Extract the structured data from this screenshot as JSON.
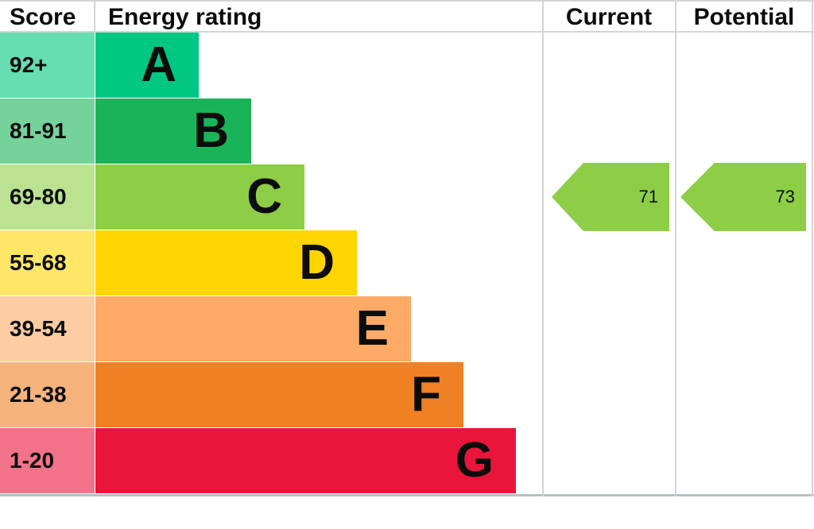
{
  "header": {
    "score": "Score",
    "energy_rating": "Energy rating",
    "current": "Current",
    "potential": "Potential"
  },
  "bands": [
    {
      "letter": "A",
      "score": "92+",
      "color": "#00c781"
    },
    {
      "letter": "B",
      "score": "81-91",
      "color": "#19b459"
    },
    {
      "letter": "C",
      "score": "69-80",
      "color": "#8dce46"
    },
    {
      "letter": "D",
      "score": "55-68",
      "color": "#ffd500"
    },
    {
      "letter": "E",
      "score": "39-54",
      "color": "#fcaa65"
    },
    {
      "letter": "F",
      "score": "21-38",
      "color": "#ef8023"
    },
    {
      "letter": "G",
      "score": "1-20",
      "color": "#e9153b"
    }
  ],
  "current": {
    "value": "71",
    "band": "C",
    "arrow_color": "#8dce46"
  },
  "potential": {
    "value": "73",
    "band": "C",
    "arrow_color": "#8dce46"
  },
  "chart_data": {
    "type": "bar",
    "title": "Energy rating",
    "categories": [
      "A",
      "B",
      "C",
      "D",
      "E",
      "F",
      "G"
    ],
    "score_ranges": [
      "92+",
      "81-91",
      "69-80",
      "55-68",
      "39-54",
      "21-38",
      "1-20"
    ],
    "band_colors": [
      "#00c781",
      "#19b459",
      "#8dce46",
      "#ffd500",
      "#fcaa65",
      "#ef8023",
      "#e9153b"
    ],
    "series": [
      {
        "name": "Current",
        "value": 71,
        "band": "C"
      },
      {
        "name": "Potential",
        "value": 73,
        "band": "C"
      }
    ],
    "legend_position": "none",
    "grid": false
  }
}
